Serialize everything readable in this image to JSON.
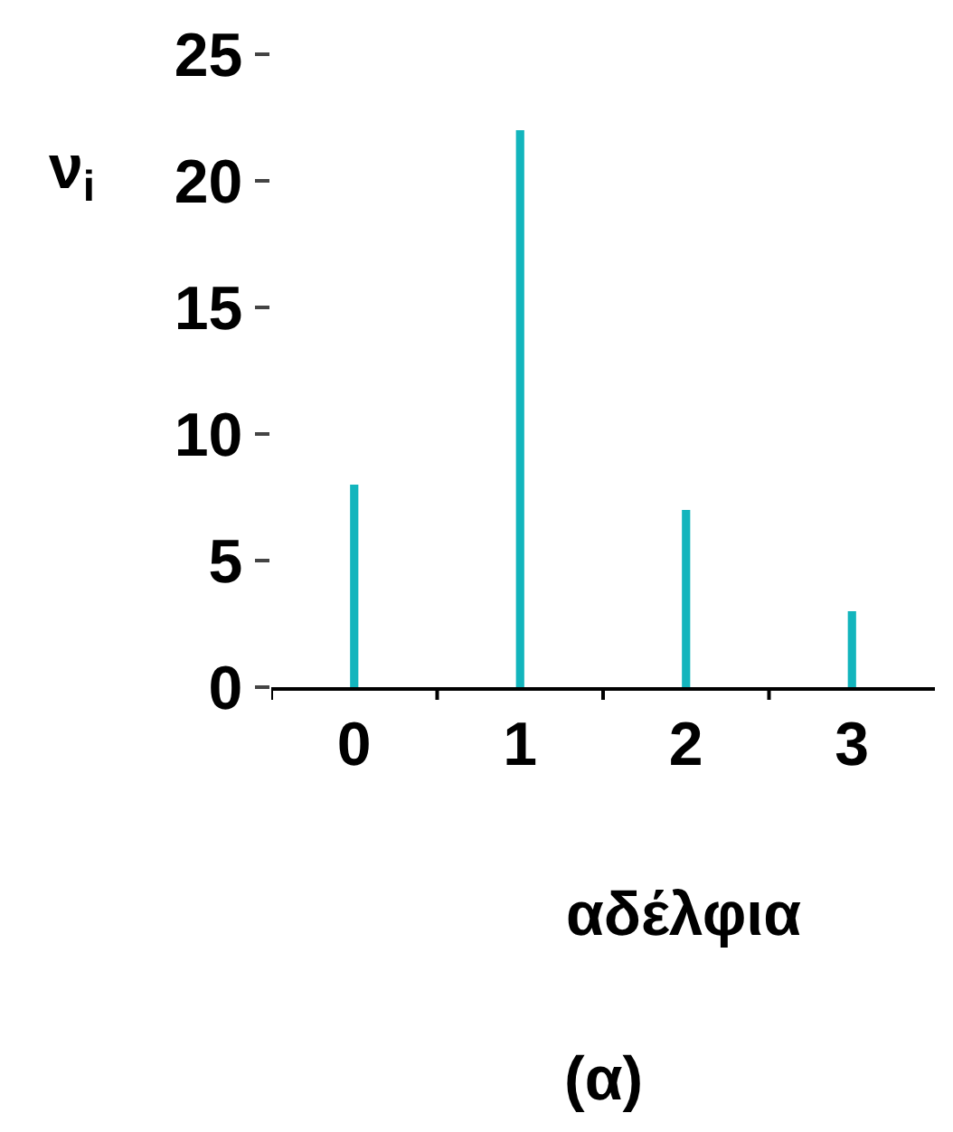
{
  "chart_data": {
    "type": "bar",
    "categories": [
      "0",
      "1",
      "2",
      "3"
    ],
    "values": [
      8,
      22,
      7,
      3
    ],
    "color": "#13b5bd",
    "ylabel": "ν$_{i}$",
    "xlabel": "αδέλφια",
    "annotations": [
      "(α)"
    ],
    "ylim": [
      0,
      25
    ],
    "yticks": [
      0,
      5,
      10,
      15,
      20,
      25
    ],
    "legend": false
  }
}
